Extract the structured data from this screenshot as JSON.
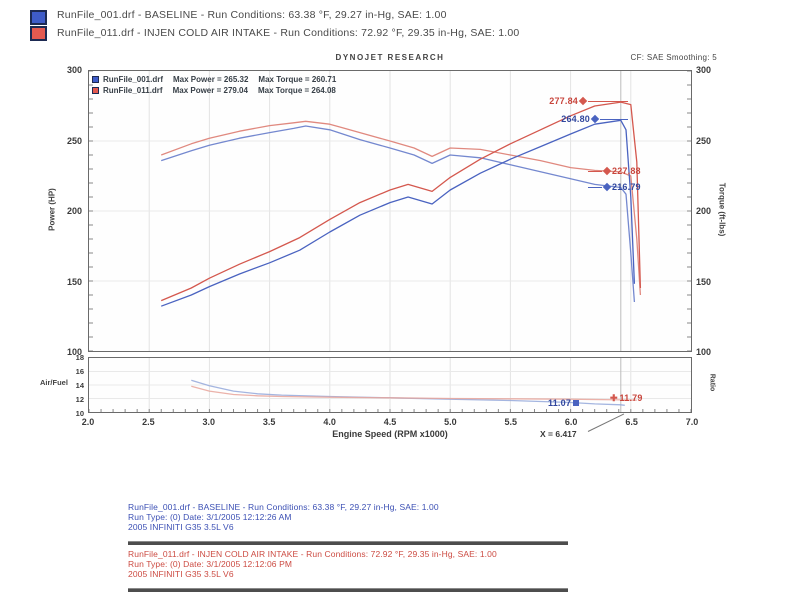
{
  "header": {
    "line1": "RunFile_001.drf - BASELINE  -  Run Conditions: 63.38 °F, 29.27 in-Hg, SAE: 1.00",
    "line2": "RunFile_011.drf - INJEN COLD AIR INTAKE  -  Run Conditions: 72.92 °F, 29.35 in-Hg, SAE: 1.00"
  },
  "colors": {
    "baseline_power": "#4a63c0",
    "baseline_torque": "#7488cf",
    "baseline_af": "#94a8da",
    "intake_power": "#d4584e",
    "intake_torque": "#e0897f",
    "intake_af": "#e7a49b",
    "swatch_blue": "#3f5cc8",
    "swatch_red": "#e45a50",
    "footer_blue": "#3c50b4",
    "footer_red": "#cc4b42"
  },
  "chart": {
    "brand": "DYNOJET RESEARCH",
    "cf_label": "CF: SAE   Smoothing: 5",
    "legend": [
      {
        "file": "RunFile_001.drf",
        "max_power": "Max Power = 265.32",
        "max_torque": "Max Torque = 260.71"
      },
      {
        "file": "RunFile_011.drf",
        "max_power": "Max Power = 279.04",
        "max_torque": "Max Torque = 264.08"
      }
    ],
    "y_left_title": "Power (HP)",
    "y_right_title": "Torque (ft-lbs)",
    "af_left_title": "Air/Fuel",
    "af_right_title": "Ratio",
    "x_title": "Engine Speed (RPM x1000)",
    "cursor_label": "X = 6.417",
    "callouts": {
      "power_intake": "277.84",
      "power_baseline": "264.80",
      "torque_intake": "227.88",
      "torque_baseline": "216.79",
      "af_baseline": "11.07",
      "af_intake": "11.79"
    }
  },
  "chart_data": [
    {
      "type": "line",
      "title": "Power / Torque vs Engine Speed",
      "xlabel": "Engine Speed (RPM x1000)",
      "x_range": [
        2.0,
        7.0
      ],
      "x_ticks": [
        "2.0",
        "2.5",
        "3.0",
        "3.5",
        "4.0",
        "4.5",
        "5.0",
        "5.5",
        "6.0",
        "6.5",
        "7.0"
      ],
      "ylabel_left": "Power (HP)",
      "ylabel_right": "Torque (ft-lbs)",
      "y_range": [
        100,
        300
      ],
      "y_ticks": [
        "300",
        "250",
        "200",
        "150",
        "100"
      ],
      "cursor_x": 6.417,
      "grid": true,
      "series": [
        {
          "name": "baseline-torque",
          "axis": "torque",
          "color_key": "baseline_torque",
          "points": [
            [
              2.6,
              236
            ],
            [
              2.85,
              243
            ],
            [
              3.0,
              247
            ],
            [
              3.25,
              252
            ],
            [
              3.5,
              256
            ],
            [
              3.7,
              259
            ],
            [
              3.8,
              260.7
            ],
            [
              4.0,
              258
            ],
            [
              4.25,
              251
            ],
            [
              4.5,
              245
            ],
            [
              4.7,
              240
            ],
            [
              4.85,
              234
            ],
            [
              5.0,
              240
            ],
            [
              5.25,
              238
            ],
            [
              5.5,
              233
            ],
            [
              5.75,
              228
            ],
            [
              6.0,
              223
            ],
            [
              6.2,
              219
            ],
            [
              6.417,
              216.8
            ],
            [
              6.46,
              212
            ],
            [
              6.5,
              170
            ],
            [
              6.53,
              135
            ]
          ]
        },
        {
          "name": "intake-torque",
          "axis": "torque",
          "color_key": "intake_torque",
          "points": [
            [
              2.6,
              240
            ],
            [
              2.85,
              248
            ],
            [
              3.0,
              252
            ],
            [
              3.25,
              257
            ],
            [
              3.5,
              261
            ],
            [
              3.7,
              263
            ],
            [
              3.8,
              264.1
            ],
            [
              4.0,
              262
            ],
            [
              4.25,
              256
            ],
            [
              4.5,
              250
            ],
            [
              4.7,
              245
            ],
            [
              4.85,
              239
            ],
            [
              5.0,
              245
            ],
            [
              5.25,
              244
            ],
            [
              5.5,
              240
            ],
            [
              5.75,
              236
            ],
            [
              6.0,
              231
            ],
            [
              6.2,
              229
            ],
            [
              6.417,
              227.9
            ],
            [
              6.5,
              225
            ],
            [
              6.55,
              180
            ],
            [
              6.58,
              140
            ]
          ]
        },
        {
          "name": "baseline-power",
          "axis": "power",
          "color_key": "baseline_power",
          "points": [
            [
              2.6,
              132
            ],
            [
              2.85,
              140
            ],
            [
              3.0,
              146
            ],
            [
              3.25,
              155
            ],
            [
              3.5,
              163
            ],
            [
              3.75,
              172
            ],
            [
              4.0,
              185
            ],
            [
              4.25,
              197
            ],
            [
              4.5,
              206
            ],
            [
              4.65,
              210
            ],
            [
              4.85,
              205
            ],
            [
              5.0,
              215
            ],
            [
              5.25,
              227
            ],
            [
              5.5,
              237
            ],
            [
              5.75,
              246
            ],
            [
              6.0,
              255
            ],
            [
              6.2,
              262
            ],
            [
              6.417,
              264.8
            ],
            [
              6.46,
              258
            ],
            [
              6.5,
              210
            ],
            [
              6.53,
              148
            ]
          ]
        },
        {
          "name": "intake-power",
          "axis": "power",
          "color_key": "intake_power",
          "points": [
            [
              2.6,
              136
            ],
            [
              2.85,
              145
            ],
            [
              3.0,
              152
            ],
            [
              3.25,
              162
            ],
            [
              3.5,
              171
            ],
            [
              3.75,
              181
            ],
            [
              4.0,
              194
            ],
            [
              4.25,
              206
            ],
            [
              4.5,
              215
            ],
            [
              4.65,
              219
            ],
            [
              4.85,
              214
            ],
            [
              5.0,
              224
            ],
            [
              5.25,
              237
            ],
            [
              5.5,
              248
            ],
            [
              5.75,
              258
            ],
            [
              6.0,
              268
            ],
            [
              6.2,
              275
            ],
            [
              6.417,
              277.8
            ],
            [
              6.5,
              276
            ],
            [
              6.55,
              235
            ],
            [
              6.58,
              145
            ]
          ]
        }
      ]
    },
    {
      "type": "line",
      "title": "Air/Fuel Ratio vs Engine Speed",
      "xlabel": "Engine Speed (RPM x1000)",
      "x_range": [
        2.0,
        7.0
      ],
      "ylabel": "Air/Fuel",
      "y_range": [
        10,
        18
      ],
      "y_ticks": [
        "18",
        "16",
        "14",
        "12",
        "10"
      ],
      "cursor_x": 6.417,
      "grid": true,
      "series": [
        {
          "name": "baseline-af",
          "color_key": "baseline_af",
          "points": [
            [
              2.85,
              14.7
            ],
            [
              3.0,
              13.9
            ],
            [
              3.2,
              13.1
            ],
            [
              3.4,
              12.7
            ],
            [
              3.6,
              12.5
            ],
            [
              4.0,
              12.3
            ],
            [
              4.5,
              12.1
            ],
            [
              5.0,
              11.9
            ],
            [
              5.5,
              11.7
            ],
            [
              6.0,
              11.4
            ],
            [
              6.2,
              11.2
            ],
            [
              6.417,
              11.07
            ],
            [
              6.45,
              11.0
            ]
          ]
        },
        {
          "name": "intake-af",
          "color_key": "intake_af",
          "points": [
            [
              2.85,
              13.8
            ],
            [
              3.0,
              13.1
            ],
            [
              3.2,
              12.6
            ],
            [
              3.4,
              12.4
            ],
            [
              3.6,
              12.3
            ],
            [
              4.0,
              12.2
            ],
            [
              4.5,
              12.1
            ],
            [
              5.0,
              12.0
            ],
            [
              5.5,
              11.95
            ],
            [
              6.0,
              11.9
            ],
            [
              6.417,
              11.79
            ],
            [
              6.55,
              11.75
            ]
          ]
        }
      ]
    }
  ],
  "footer": {
    "blue_lines": [
      "RunFile_001.drf - BASELINE  -  Run Conditions: 63.38 °F, 29.27 in-Hg, SAE: 1.00",
      "Run Type: (0)  Date: 3/1/2005 12:12:26 AM",
      "2005 INFINITI G35 3.5L V6"
    ],
    "red_lines": [
      "RunFile_011.drf - INJEN COLD AIR INTAKE  -  Run Conditions: 72.92 °F, 29.35 in-Hg, SAE: 1.00",
      "Run Type: (0)  Date: 3/1/2005 12:12:06 PM",
      "2005 INFINITI G35 3.5L V6"
    ]
  }
}
